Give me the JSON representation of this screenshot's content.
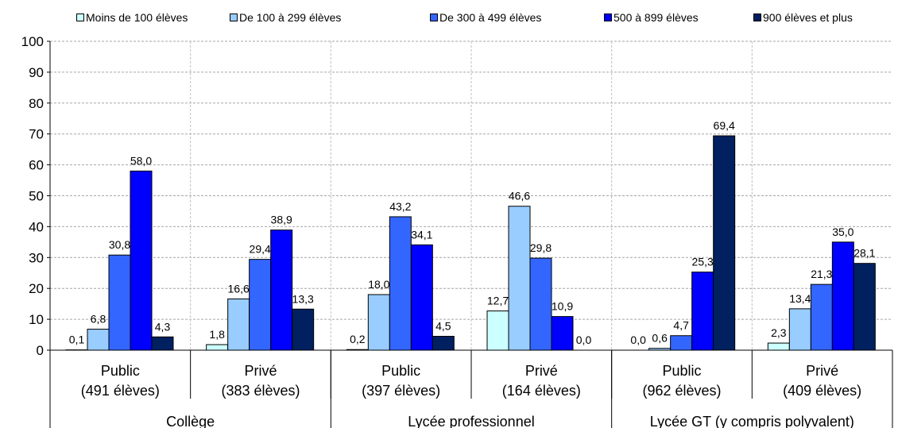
{
  "chart_data": {
    "type": "bar",
    "title": "",
    "ylim": [
      0,
      100
    ],
    "yticks": [
      0,
      10,
      20,
      30,
      40,
      50,
      60,
      70,
      80,
      90,
      100
    ],
    "grid": true,
    "legend_position": "top",
    "series": [
      {
        "name": "Moins de 100 élèves",
        "color": "#ccffff",
        "values": [
          0.1,
          1.8,
          0.2,
          12.7,
          0.0,
          2.3
        ]
      },
      {
        "name": "De 100 à 299 élèves",
        "color": "#99ccff",
        "values": [
          6.8,
          16.6,
          18.0,
          46.6,
          0.6,
          13.4
        ]
      },
      {
        "name": "De 300 à 499 élèves",
        "color": "#3366ff",
        "values": [
          30.8,
          29.4,
          43.2,
          29.8,
          4.7,
          21.3
        ]
      },
      {
        "name": "500 à 899 élèves",
        "color": "#0000ff",
        "values": [
          58.0,
          38.9,
          34.1,
          10.9,
          25.3,
          35.0
        ]
      },
      {
        "name": "900 élèves et plus",
        "color": "#002060",
        "values": [
          4.3,
          13.3,
          4.5,
          0.0,
          69.4,
          28.1
        ]
      }
    ],
    "data_labels": [
      [
        "0,1",
        "6,8",
        "30,8",
        "58,0",
        "4,3"
      ],
      [
        "1,8",
        "16,6",
        "29,4",
        "38,9",
        "13,3"
      ],
      [
        "0,2",
        "18,0",
        "43,2",
        "34,1",
        "4,5"
      ],
      [
        "12,7",
        "46,6",
        "29,8",
        "10,9",
        "0,0"
      ],
      [
        "0,0",
        "0,6",
        "4,7",
        "25,3",
        "69,4"
      ],
      [
        "2,3",
        "13,4",
        "21,3",
        "35,0",
        "28,1"
      ]
    ],
    "categories": [
      {
        "line1": "Public",
        "line2": "(491 élèves)"
      },
      {
        "line1": "Privé",
        "line2": "(383 élèves)"
      },
      {
        "line1": "Public",
        "line2": "(397 élèves)"
      },
      {
        "line1": "Privé",
        "line2": "(164 élèves)"
      },
      {
        "line1": "Public",
        "line2": "(962 élèves)"
      },
      {
        "line1": "Privé",
        "line2": "(409 élèves)"
      }
    ],
    "groups": [
      "Collège",
      "Lycée professionnel",
      "Lycée GT (y compris polyvalent)"
    ]
  }
}
